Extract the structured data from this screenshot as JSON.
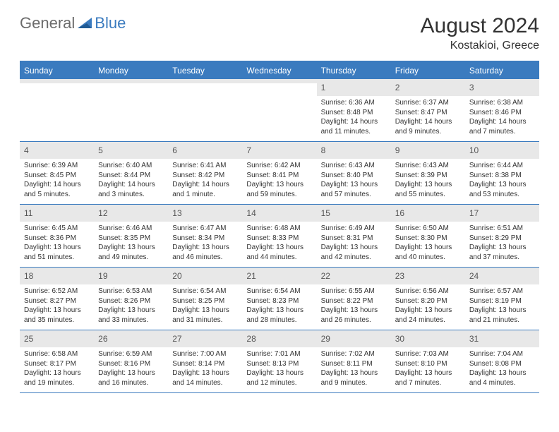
{
  "logo": {
    "general": "General",
    "blue": "Blue"
  },
  "title": "August 2024",
  "location": "Kostakioi, Greece",
  "colors": {
    "accent": "#3b7bbf",
    "header_text": "#ffffff",
    "daynum_bg": "#e8e8e8",
    "body_text": "#333333",
    "logo_gray": "#6b6b6b"
  },
  "day_headers": [
    "Sunday",
    "Monday",
    "Tuesday",
    "Wednesday",
    "Thursday",
    "Friday",
    "Saturday"
  ],
  "weeks": [
    [
      {
        "day": "",
        "lines": []
      },
      {
        "day": "",
        "lines": []
      },
      {
        "day": "",
        "lines": []
      },
      {
        "day": "",
        "lines": []
      },
      {
        "day": "1",
        "lines": [
          "Sunrise: 6:36 AM",
          "Sunset: 8:48 PM",
          "Daylight: 14 hours and 11 minutes."
        ]
      },
      {
        "day": "2",
        "lines": [
          "Sunrise: 6:37 AM",
          "Sunset: 8:47 PM",
          "Daylight: 14 hours and 9 minutes."
        ]
      },
      {
        "day": "3",
        "lines": [
          "Sunrise: 6:38 AM",
          "Sunset: 8:46 PM",
          "Daylight: 14 hours and 7 minutes."
        ]
      }
    ],
    [
      {
        "day": "4",
        "lines": [
          "Sunrise: 6:39 AM",
          "Sunset: 8:45 PM",
          "Daylight: 14 hours and 5 minutes."
        ]
      },
      {
        "day": "5",
        "lines": [
          "Sunrise: 6:40 AM",
          "Sunset: 8:44 PM",
          "Daylight: 14 hours and 3 minutes."
        ]
      },
      {
        "day": "6",
        "lines": [
          "Sunrise: 6:41 AM",
          "Sunset: 8:42 PM",
          "Daylight: 14 hours and 1 minute."
        ]
      },
      {
        "day": "7",
        "lines": [
          "Sunrise: 6:42 AM",
          "Sunset: 8:41 PM",
          "Daylight: 13 hours and 59 minutes."
        ]
      },
      {
        "day": "8",
        "lines": [
          "Sunrise: 6:43 AM",
          "Sunset: 8:40 PM",
          "Daylight: 13 hours and 57 minutes."
        ]
      },
      {
        "day": "9",
        "lines": [
          "Sunrise: 6:43 AM",
          "Sunset: 8:39 PM",
          "Daylight: 13 hours and 55 minutes."
        ]
      },
      {
        "day": "10",
        "lines": [
          "Sunrise: 6:44 AM",
          "Sunset: 8:38 PM",
          "Daylight: 13 hours and 53 minutes."
        ]
      }
    ],
    [
      {
        "day": "11",
        "lines": [
          "Sunrise: 6:45 AM",
          "Sunset: 8:36 PM",
          "Daylight: 13 hours and 51 minutes."
        ]
      },
      {
        "day": "12",
        "lines": [
          "Sunrise: 6:46 AM",
          "Sunset: 8:35 PM",
          "Daylight: 13 hours and 49 minutes."
        ]
      },
      {
        "day": "13",
        "lines": [
          "Sunrise: 6:47 AM",
          "Sunset: 8:34 PM",
          "Daylight: 13 hours and 46 minutes."
        ]
      },
      {
        "day": "14",
        "lines": [
          "Sunrise: 6:48 AM",
          "Sunset: 8:33 PM",
          "Daylight: 13 hours and 44 minutes."
        ]
      },
      {
        "day": "15",
        "lines": [
          "Sunrise: 6:49 AM",
          "Sunset: 8:31 PM",
          "Daylight: 13 hours and 42 minutes."
        ]
      },
      {
        "day": "16",
        "lines": [
          "Sunrise: 6:50 AM",
          "Sunset: 8:30 PM",
          "Daylight: 13 hours and 40 minutes."
        ]
      },
      {
        "day": "17",
        "lines": [
          "Sunrise: 6:51 AM",
          "Sunset: 8:29 PM",
          "Daylight: 13 hours and 37 minutes."
        ]
      }
    ],
    [
      {
        "day": "18",
        "lines": [
          "Sunrise: 6:52 AM",
          "Sunset: 8:27 PM",
          "Daylight: 13 hours and 35 minutes."
        ]
      },
      {
        "day": "19",
        "lines": [
          "Sunrise: 6:53 AM",
          "Sunset: 8:26 PM",
          "Daylight: 13 hours and 33 minutes."
        ]
      },
      {
        "day": "20",
        "lines": [
          "Sunrise: 6:54 AM",
          "Sunset: 8:25 PM",
          "Daylight: 13 hours and 31 minutes."
        ]
      },
      {
        "day": "21",
        "lines": [
          "Sunrise: 6:54 AM",
          "Sunset: 8:23 PM",
          "Daylight: 13 hours and 28 minutes."
        ]
      },
      {
        "day": "22",
        "lines": [
          "Sunrise: 6:55 AM",
          "Sunset: 8:22 PM",
          "Daylight: 13 hours and 26 minutes."
        ]
      },
      {
        "day": "23",
        "lines": [
          "Sunrise: 6:56 AM",
          "Sunset: 8:20 PM",
          "Daylight: 13 hours and 24 minutes."
        ]
      },
      {
        "day": "24",
        "lines": [
          "Sunrise: 6:57 AM",
          "Sunset: 8:19 PM",
          "Daylight: 13 hours and 21 minutes."
        ]
      }
    ],
    [
      {
        "day": "25",
        "lines": [
          "Sunrise: 6:58 AM",
          "Sunset: 8:17 PM",
          "Daylight: 13 hours and 19 minutes."
        ]
      },
      {
        "day": "26",
        "lines": [
          "Sunrise: 6:59 AM",
          "Sunset: 8:16 PM",
          "Daylight: 13 hours and 16 minutes."
        ]
      },
      {
        "day": "27",
        "lines": [
          "Sunrise: 7:00 AM",
          "Sunset: 8:14 PM",
          "Daylight: 13 hours and 14 minutes."
        ]
      },
      {
        "day": "28",
        "lines": [
          "Sunrise: 7:01 AM",
          "Sunset: 8:13 PM",
          "Daylight: 13 hours and 12 minutes."
        ]
      },
      {
        "day": "29",
        "lines": [
          "Sunrise: 7:02 AM",
          "Sunset: 8:11 PM",
          "Daylight: 13 hours and 9 minutes."
        ]
      },
      {
        "day": "30",
        "lines": [
          "Sunrise: 7:03 AM",
          "Sunset: 8:10 PM",
          "Daylight: 13 hours and 7 minutes."
        ]
      },
      {
        "day": "31",
        "lines": [
          "Sunrise: 7:04 AM",
          "Sunset: 8:08 PM",
          "Daylight: 13 hours and 4 minutes."
        ]
      }
    ]
  ]
}
